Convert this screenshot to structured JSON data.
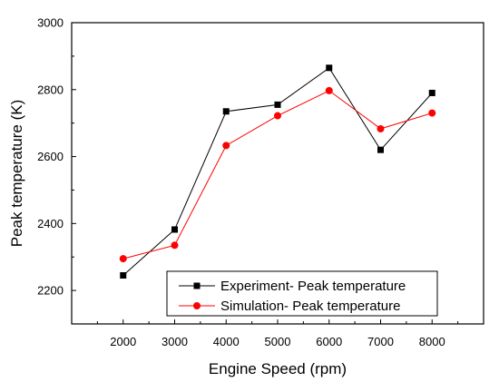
{
  "chart_data": {
    "type": "line",
    "title": "",
    "xlabel": "Engine Speed (rpm)",
    "ylabel": "Peak temperature (K)",
    "xlim": [
      1000,
      9000
    ],
    "ylim": [
      2100,
      3000
    ],
    "x_ticks": [
      2000,
      3000,
      4000,
      5000,
      6000,
      7000,
      8000
    ],
    "y_ticks": [
      2200,
      2400,
      2600,
      2800,
      3000
    ],
    "x_tick_labels": [
      "2000",
      "3000",
      "4000",
      "5000",
      "6000",
      "7000",
      "8000"
    ],
    "y_tick_labels": [
      "2200",
      "2400",
      "2600",
      "2800",
      "3000"
    ],
    "grid": false,
    "legend_position": "bottom-right",
    "x": [
      2000,
      3000,
      4000,
      5000,
      6000,
      7000,
      8000
    ],
    "series": [
      {
        "name": "Experiment- Peak temperature",
        "marker": "square",
        "color": "#000000",
        "values": [
          2245,
          2382,
          2735,
          2755,
          2865,
          2620,
          2790
        ]
      },
      {
        "name": "Simulation- Peak temperature",
        "marker": "circle",
        "color": "#ff0000",
        "values": [
          2295,
          2335,
          2633,
          2722,
          2797,
          2683,
          2730
        ]
      }
    ]
  }
}
